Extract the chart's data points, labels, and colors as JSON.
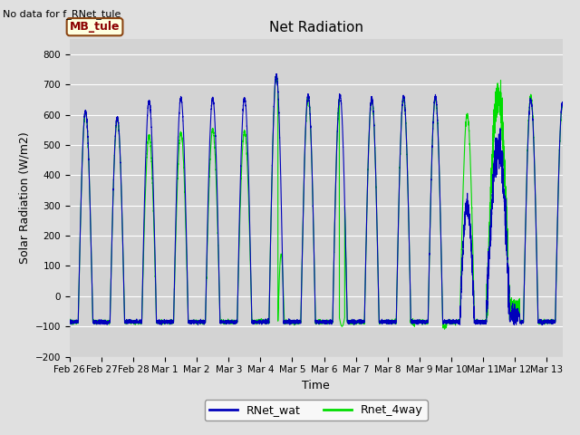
{
  "title": "Net Radiation",
  "xlabel": "Time",
  "ylabel": "Solar Radiation (W/m2)",
  "ylim": [
    -200,
    850
  ],
  "yticks": [
    -200,
    -100,
    0,
    100,
    200,
    300,
    400,
    500,
    600,
    700,
    800
  ],
  "xtick_labels": [
    "Feb 26",
    "Feb 27",
    "Feb 28",
    "Mar 1",
    "Mar 2",
    "Mar 3",
    "Mar 4",
    "Mar 5",
    "Mar 6",
    "Mar 7",
    "Mar 8",
    "Mar 9",
    "Mar 10",
    "Mar 11",
    "Mar 12",
    "Mar 13"
  ],
  "note": "No data for f_RNet_tule",
  "legend_box_label": "MB_tule",
  "line1_color": "#0000bb",
  "line1_label": "RNet_wat",
  "line2_color": "#00dd00",
  "line2_label": "Rnet_4way",
  "background_color": "#e0e0e0",
  "plot_bg_color": "#d3d3d3",
  "grid_color": "#ffffff",
  "night_val": -85,
  "total_days": 15.5
}
